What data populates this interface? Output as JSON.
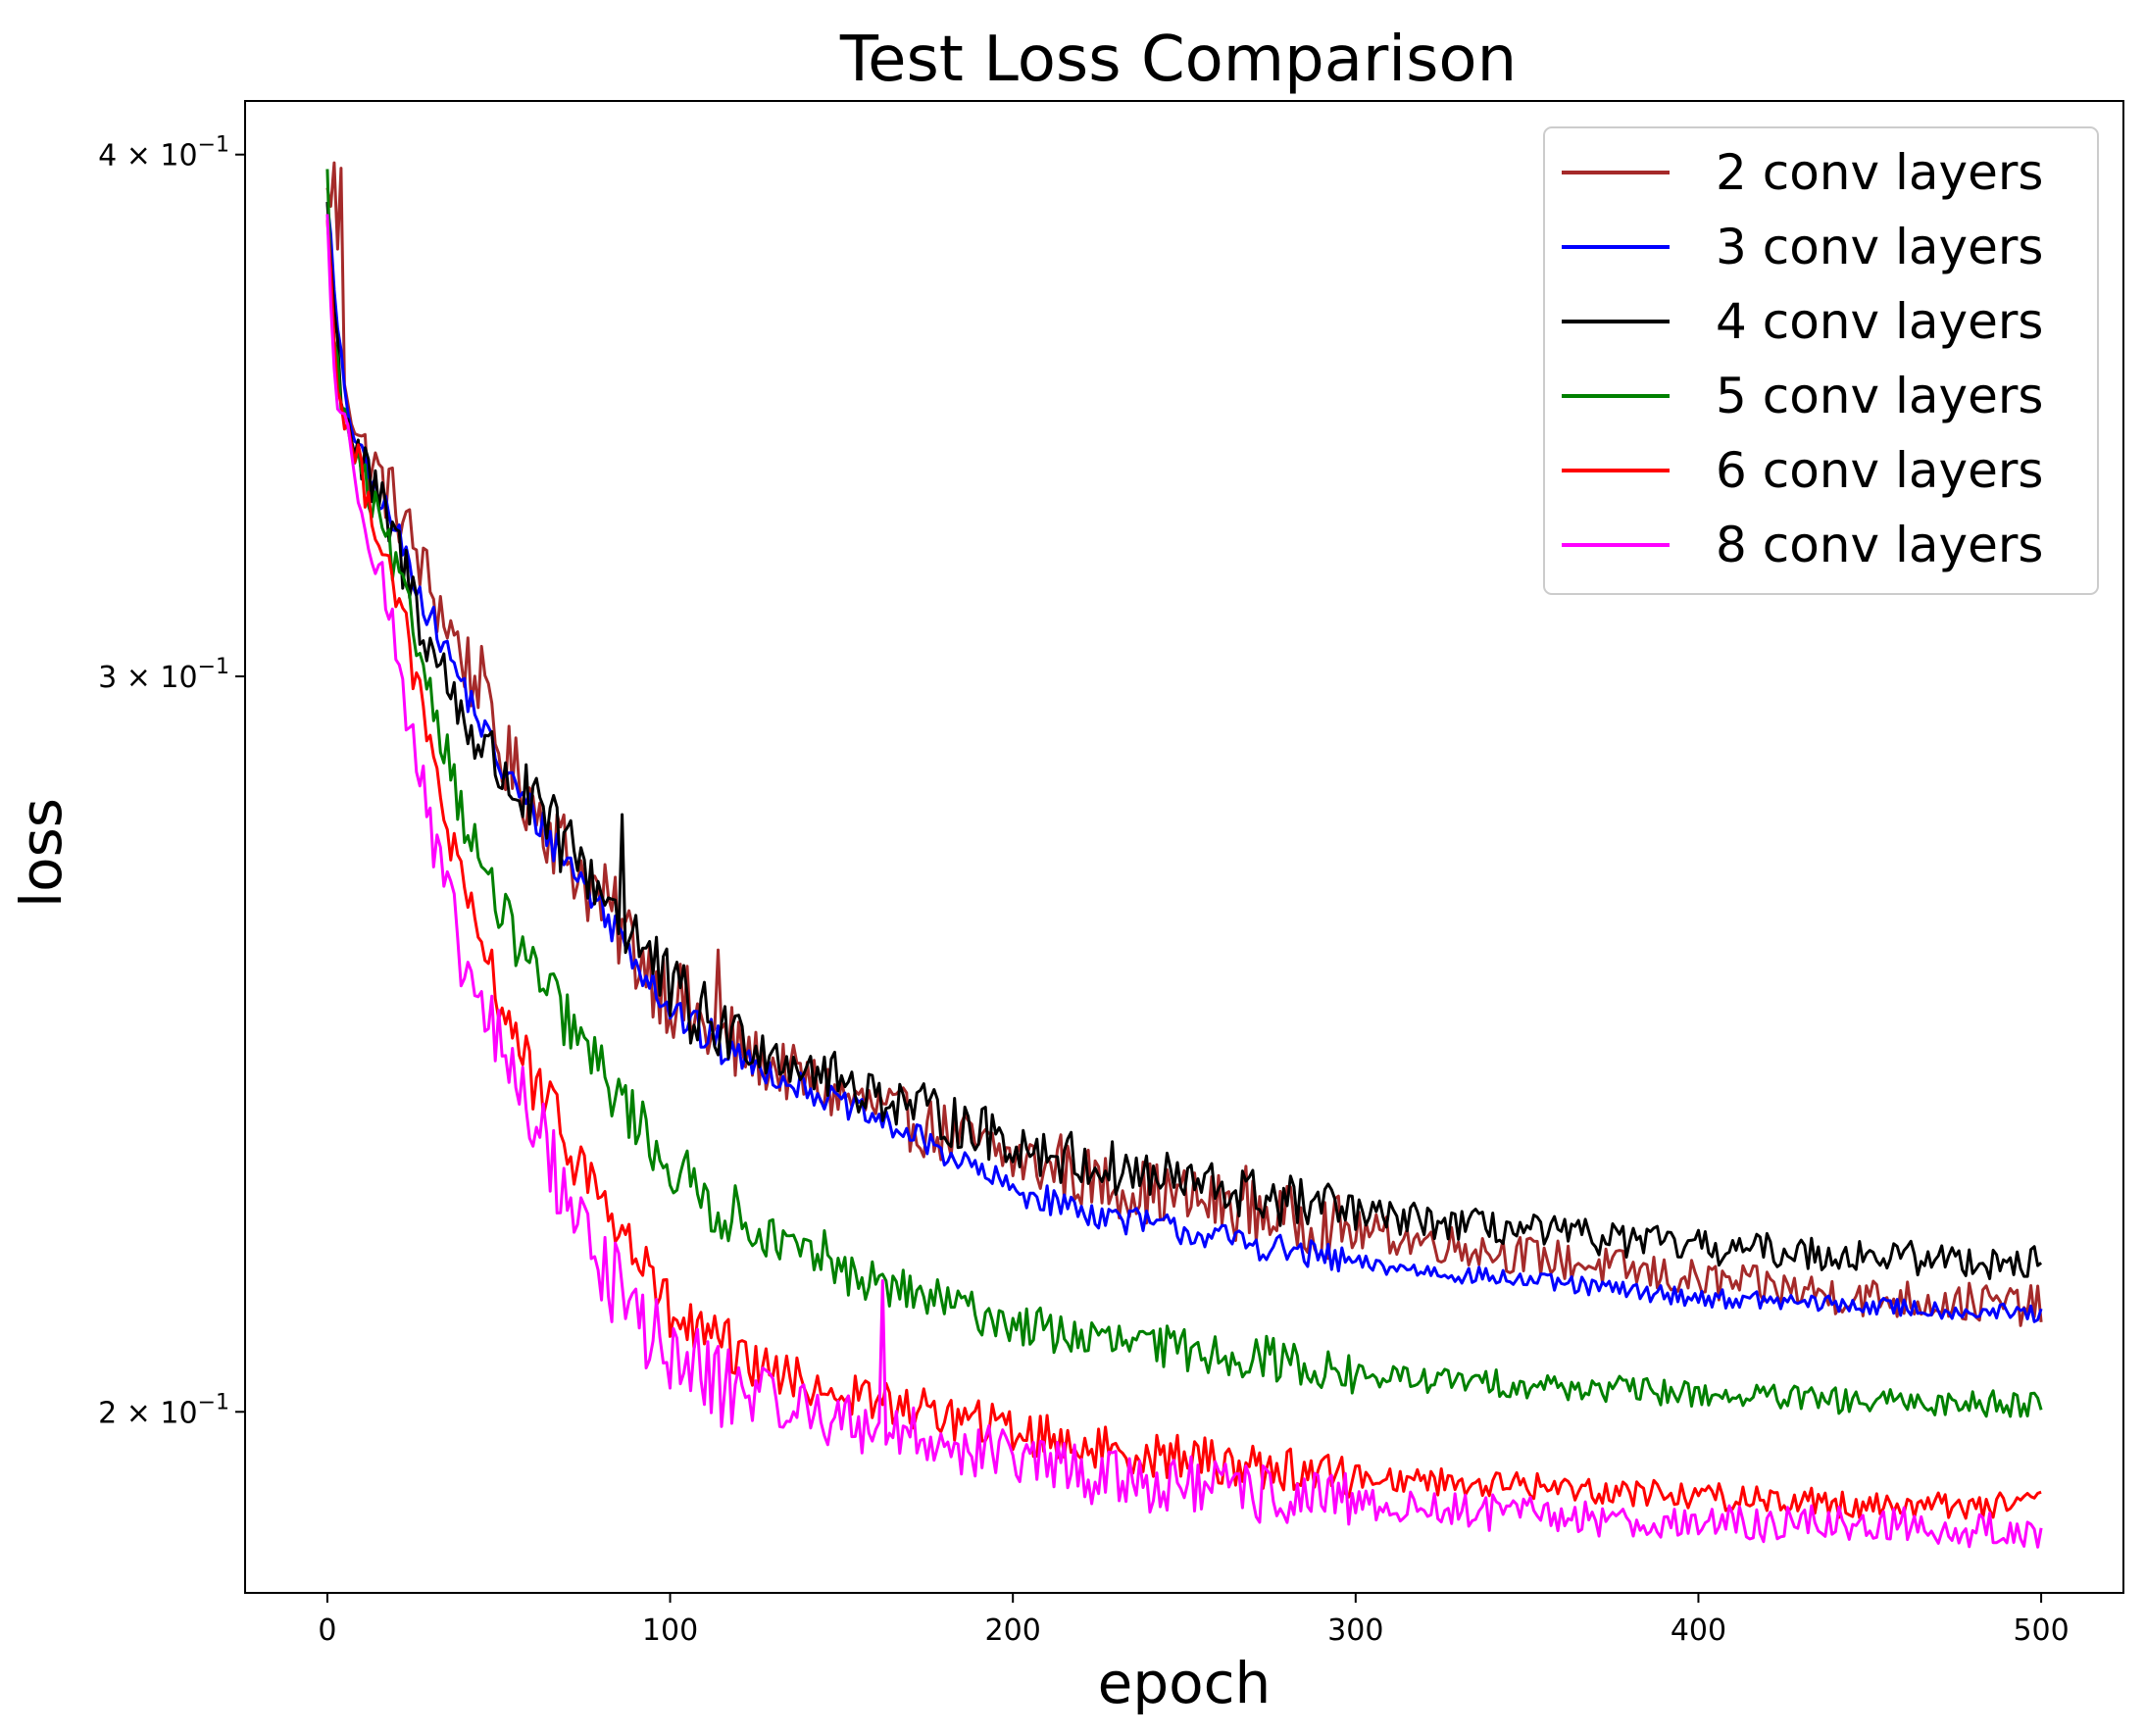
{
  "chart_data": {
    "type": "line",
    "title": "Test Loss Comparison",
    "xlabel": "epoch",
    "ylabel": "loss",
    "yscale": "log",
    "xlim": [
      -24,
      524
    ],
    "ylim": [
      0.181,
      0.412
    ],
    "x_ticks": [
      0,
      100,
      200,
      300,
      400,
      500
    ],
    "x_tick_labels": [
      "0",
      "100",
      "200",
      "300",
      "400",
      "500"
    ],
    "y_ticks": [
      {
        "value": 0.4,
        "mantissa": "4",
        "exp": "−1"
      },
      {
        "value": 0.3,
        "mantissa": "3",
        "exp": "−1"
      },
      {
        "value": 0.2,
        "mantissa": "2",
        "exp": "−1"
      }
    ],
    "legend_position": "top-right",
    "series": [
      {
        "name": "2 conv layers",
        "color": "#a52a2a",
        "epochs": [
          0,
          2,
          5,
          10,
          20,
          30,
          40,
          50,
          60,
          70,
          80,
          90,
          100,
          110,
          125,
          150,
          175,
          200,
          225,
          250,
          275,
          300,
          350,
          400,
          450,
          500
        ],
        "loss": [
          0.39,
          0.395,
          0.355,
          0.34,
          0.33,
          0.315,
          0.303,
          0.288,
          0.28,
          0.272,
          0.265,
          0.258,
          0.252,
          0.247,
          0.243,
          0.238,
          0.234,
          0.23,
          0.227,
          0.225,
          0.223,
          0.221,
          0.218,
          0.215,
          0.213,
          0.212
        ],
        "noise": 0.004,
        "spikes": [
          [
            4,
            0.397
          ],
          [
            45,
            0.305
          ],
          [
            114,
            0.258
          ],
          [
            214,
            0.233
          ],
          [
            268,
            0.229
          ]
        ]
      },
      {
        "name": "3 conv layers",
        "color": "#0000ff",
        "epochs": [
          0,
          2,
          5,
          10,
          20,
          30,
          40,
          50,
          60,
          70,
          80,
          90,
          100,
          110,
          125,
          150,
          175,
          200,
          225,
          250,
          275,
          300,
          350,
          400,
          450,
          500
        ],
        "loss": [
          0.392,
          0.37,
          0.35,
          0.338,
          0.325,
          0.31,
          0.298,
          0.286,
          0.278,
          0.271,
          0.264,
          0.257,
          0.25,
          0.246,
          0.242,
          0.237,
          0.232,
          0.226,
          0.223,
          0.221,
          0.219,
          0.217,
          0.215,
          0.213,
          0.212,
          0.211
        ],
        "noise": 0.0018,
        "spikes": []
      },
      {
        "name": "4 conv layers",
        "color": "#000000",
        "epochs": [
          0,
          2,
          5,
          10,
          20,
          30,
          40,
          50,
          60,
          70,
          80,
          90,
          100,
          110,
          125,
          150,
          175,
          200,
          225,
          250,
          275,
          300,
          350,
          400,
          450,
          500
        ],
        "loss": [
          0.39,
          0.365,
          0.348,
          0.337,
          0.323,
          0.305,
          0.293,
          0.285,
          0.279,
          0.273,
          0.267,
          0.26,
          0.252,
          0.248,
          0.245,
          0.24,
          0.236,
          0.232,
          0.229,
          0.227,
          0.225,
          0.223,
          0.221,
          0.219,
          0.218,
          0.217
        ],
        "noise": 0.0035,
        "spikes": [
          [
            86,
            0.278
          ]
        ]
      },
      {
        "name": "5 conv layers",
        "color": "#008000",
        "epochs": [
          0,
          2,
          5,
          10,
          20,
          30,
          40,
          50,
          60,
          70,
          80,
          90,
          100,
          110,
          125,
          150,
          175,
          200,
          225,
          250,
          275,
          300,
          350,
          400,
          450,
          500
        ],
        "loss": [
          0.394,
          0.36,
          0.345,
          0.335,
          0.318,
          0.298,
          0.277,
          0.264,
          0.255,
          0.248,
          0.241,
          0.235,
          0.229,
          0.225,
          0.221,
          0.216,
          0.213,
          0.21,
          0.208,
          0.207,
          0.206,
          0.204,
          0.203,
          0.202,
          0.201,
          0.201
        ],
        "noise": 0.0025,
        "spikes": [
          [
            145,
            0.221
          ]
        ]
      },
      {
        "name": "6 conv layers",
        "color": "#ff0000",
        "epochs": [
          0,
          2,
          5,
          10,
          20,
          30,
          40,
          50,
          60,
          70,
          80,
          90,
          100,
          110,
          125,
          150,
          175,
          200,
          225,
          250,
          275,
          300,
          350,
          400,
          450,
          500
        ],
        "loss": [
          0.388,
          0.36,
          0.345,
          0.335,
          0.315,
          0.288,
          0.265,
          0.252,
          0.24,
          0.232,
          0.225,
          0.218,
          0.211,
          0.208,
          0.205,
          0.202,
          0.2,
          0.198,
          0.196,
          0.195,
          0.194,
          0.193,
          0.192,
          0.191,
          0.19,
          0.19
        ],
        "noise": 0.0025,
        "spikes": []
      },
      {
        "name": "8 conv layers",
        "color": "#ff00ff",
        "epochs": [
          0,
          2,
          5,
          10,
          20,
          30,
          40,
          50,
          60,
          70,
          80,
          90,
          100,
          110,
          125,
          150,
          175,
          200,
          225,
          250,
          275,
          300,
          350,
          400,
          450,
          500
        ],
        "loss": [
          0.386,
          0.355,
          0.343,
          0.332,
          0.305,
          0.275,
          0.255,
          0.245,
          0.235,
          0.225,
          0.217,
          0.211,
          0.206,
          0.204,
          0.202,
          0.199,
          0.197,
          0.195,
          0.193,
          0.192,
          0.191,
          0.19,
          0.189,
          0.188,
          0.188,
          0.187
        ],
        "noise": 0.0032,
        "spikes": [
          [
            162,
            0.215
          ]
        ]
      }
    ]
  }
}
